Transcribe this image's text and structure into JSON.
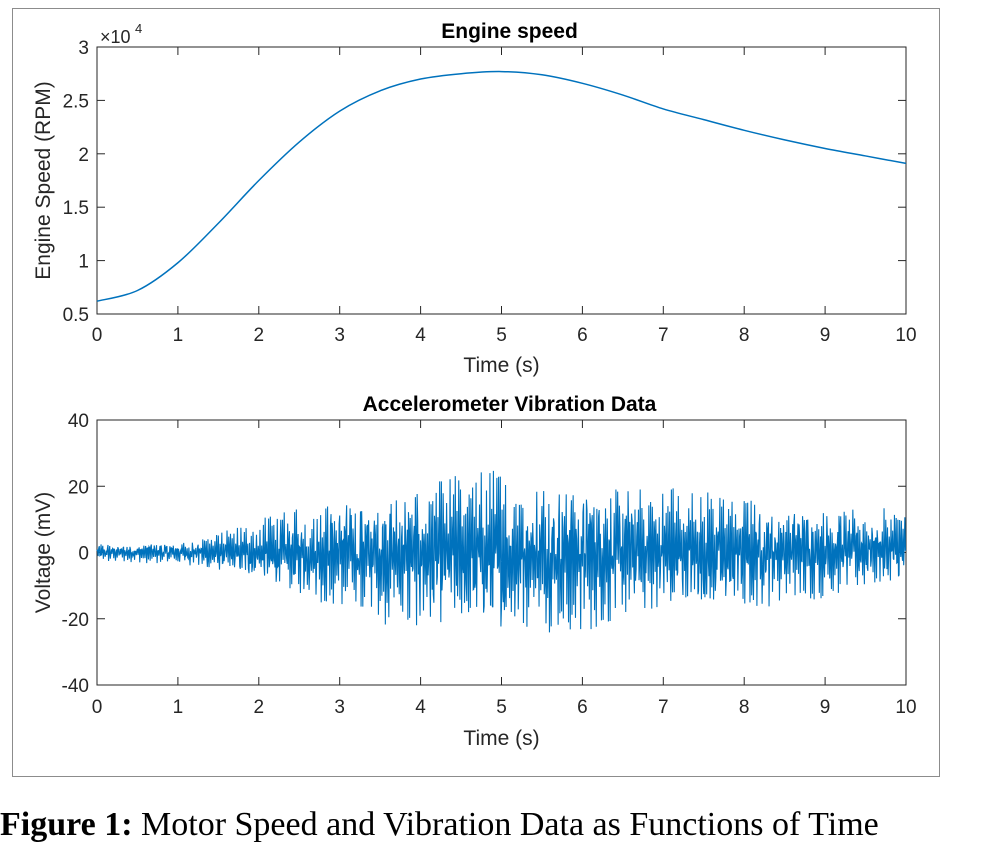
{
  "chart_data": [
    {
      "type": "line",
      "title": "Engine speed",
      "xlabel": "Time (s)",
      "ylabel": "Engine Speed (RPM)",
      "exponent_label": "×10",
      "exponent_power": "4",
      "xlim": [
        0,
        10
      ],
      "ylim": [
        0.5,
        3
      ],
      "xticks": [
        "0",
        "1",
        "2",
        "3",
        "4",
        "5",
        "6",
        "7",
        "8",
        "9",
        "10"
      ],
      "yticks": [
        "0.5",
        "1",
        "1.5",
        "2",
        "2.5",
        "3"
      ],
      "y_scale_note": "values in units of 10^4 RPM",
      "grid": false,
      "color": "#0072BD",
      "series": [
        {
          "x": [
            0,
            0.5,
            1,
            1.5,
            2,
            2.5,
            3,
            3.5,
            4,
            4.5,
            5,
            5.5,
            6,
            6.5,
            7,
            7.5,
            8,
            8.5,
            9,
            9.5,
            10
          ],
          "values": [
            0.62,
            0.72,
            0.98,
            1.35,
            1.75,
            2.11,
            2.4,
            2.59,
            2.7,
            2.75,
            2.77,
            2.74,
            2.66,
            2.55,
            2.42,
            2.32,
            2.22,
            2.13,
            2.05,
            1.98,
            1.91
          ]
        }
      ]
    },
    {
      "type": "line",
      "title": "Accelerometer Vibration Data",
      "xlabel": "Time (s)",
      "ylabel": "Voltage (mV)",
      "xlim": [
        0,
        10
      ],
      "ylim": [
        -40,
        40
      ],
      "xticks": [
        "0",
        "1",
        "2",
        "3",
        "4",
        "5",
        "6",
        "7",
        "8",
        "9",
        "10"
      ],
      "yticks": [
        "-40",
        "-20",
        "0",
        "20",
        "40"
      ],
      "grid": false,
      "color": "#0072BD",
      "series": [
        {
          "x": [
            0,
            0.5,
            1,
            1.5,
            2,
            2.5,
            3,
            3.5,
            4,
            4.5,
            5,
            5.5,
            6,
            6.5,
            7,
            7.5,
            8,
            8.5,
            9,
            9.5,
            10
          ],
          "upper_envelope": [
            3,
            3,
            4,
            6,
            10,
            14,
            18,
            20,
            22,
            24,
            26,
            24,
            23,
            22,
            21,
            19,
            18,
            17,
            15,
            14,
            13
          ],
          "lower_envelope": [
            -3,
            -3,
            -4,
            -6,
            -10,
            -14,
            -18,
            -22,
            -24,
            -25,
            -27,
            -25,
            -24,
            -22,
            -20,
            -19,
            -18,
            -16,
            -14,
            -12,
            -11
          ]
        }
      ]
    }
  ],
  "caption": {
    "label": "Figure 1:",
    "text": " Motor Speed and Vibration Data as Functions of Time"
  }
}
